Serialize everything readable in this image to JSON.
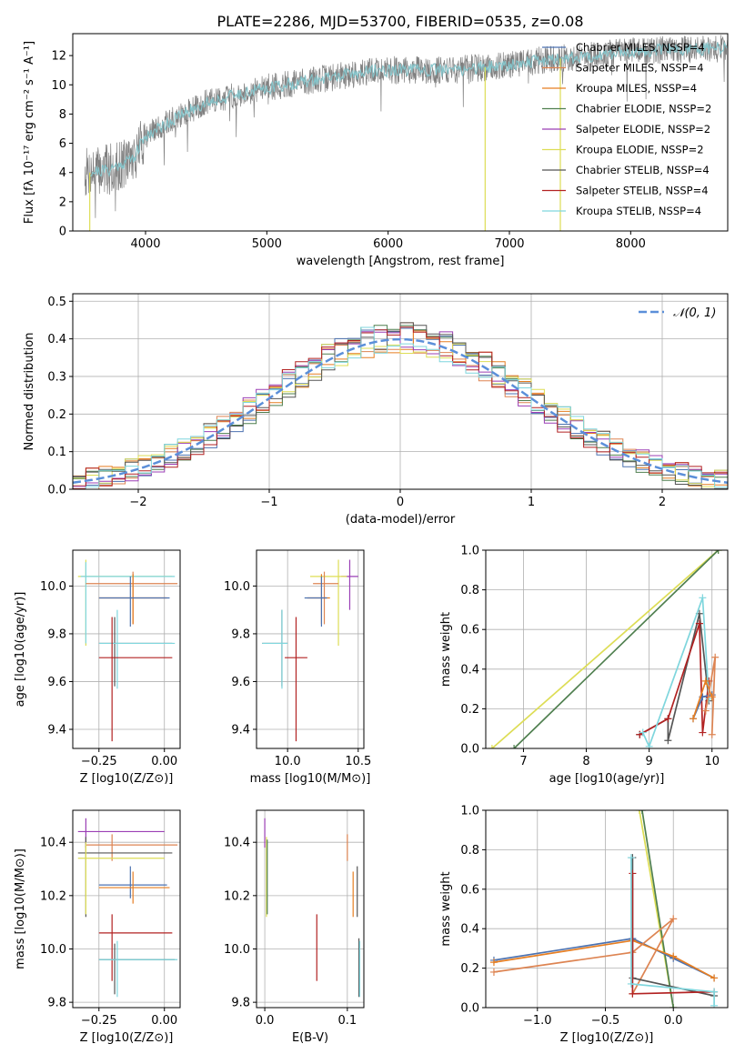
{
  "figure": {
    "title": "PLATE=2286, MJD=53700, FIBERID=0535, z=0.08"
  },
  "colors": {
    "chabrier_miles": "#4c72b0",
    "salpeter_miles": "#dd8452",
    "kroupa_miles": "#e67e22",
    "chabrier_elodie": "#4f7f4f",
    "salpeter_elodie": "#9b3fb5",
    "kroupa_elodie": "#dddd55",
    "chabrier_stelib": "#555555",
    "salpeter_stelib": "#b22222",
    "kroupa_stelib": "#7fd6dd",
    "data": "#808080",
    "gauss": "#5b8fd9"
  },
  "chart_data": [
    {
      "id": "spectrum",
      "type": "line",
      "xlabel": "wavelength [Angstrom, rest frame]",
      "ylabel": "Flux [f_λ 10^-17 erg cm^-2 s^-1 A^-1]",
      "xlim": [
        3400,
        8800
      ],
      "ylim": [
        0,
        13.5
      ],
      "xticks": [
        4000,
        5000,
        6000,
        7000,
        8000
      ],
      "yticks": [
        0,
        2,
        4,
        6,
        8,
        10,
        12
      ],
      "grid": false,
      "legend_position": "right",
      "legend": [
        {
          "label": "Chabrier MILES, N_SSP=4",
          "color_key": "chabrier_miles"
        },
        {
          "label": "Salpeter MILES, N_SSP=4",
          "color_key": "salpeter_miles"
        },
        {
          "label": "Kroupa MILES, N_SSP=4",
          "color_key": "kroupa_miles"
        },
        {
          "label": "Chabrier ELODIE, N_SSP=2",
          "color_key": "chabrier_elodie"
        },
        {
          "label": "Salpeter ELODIE, N_SSP=2",
          "color_key": "salpeter_elodie"
        },
        {
          "label": "Kroupa ELODIE, N_SSP=2",
          "color_key": "kroupa_elodie"
        },
        {
          "label": "Chabrier STELIB, N_SSP=4",
          "color_key": "chabrier_stelib"
        },
        {
          "label": "Salpeter STELIB, N_SSP=4",
          "color_key": "salpeter_stelib"
        },
        {
          "label": "Kroupa STELIB, N_SSP=4",
          "color_key": "kroupa_stelib"
        }
      ],
      "continuum": {
        "x": [
          3500,
          3700,
          3900,
          4000,
          4200,
          4500,
          4800,
          5000,
          5300,
          5600,
          5900,
          6200,
          6500,
          6800,
          7000,
          7200,
          7400,
          7600,
          7800,
          8000,
          8300,
          8800
        ],
        "y": [
          4.0,
          4.2,
          5.0,
          6.5,
          7.5,
          8.8,
          9.4,
          9.8,
          10.2,
          10.6,
          11.0,
          11.0,
          11.0,
          11.2,
          11.4,
          11.6,
          11.8,
          11.9,
          12.1,
          12.3,
          12.4,
          12.5
        ]
      },
      "model_x_range": [
        3540,
        8800
      ],
      "model_edges": [
        {
          "name": "blue edge",
          "x": 3540,
          "ymax": 4.0
        },
        {
          "name": "elodie red edge",
          "x": 6800,
          "ymax": 11.2
        },
        {
          "name": "stelib red edge",
          "x": 7420,
          "ymax": 11.8
        }
      ]
    },
    {
      "id": "residuals",
      "type": "line",
      "xlabel": "(data-model)/error",
      "ylabel": "Normed distribution",
      "xlim": [
        -2.5,
        2.5
      ],
      "ylim": [
        0,
        0.52
      ],
      "xticks": [
        -2,
        -1,
        0,
        1,
        2
      ],
      "yticks": [
        0.0,
        0.1,
        0.2,
        0.3,
        0.4,
        0.5
      ],
      "grid": true,
      "legend_position": "top-right",
      "legend": [
        {
          "label": "𝒩(0, 1)",
          "color_key": "gauss"
        }
      ],
      "bin_width": 0.1,
      "hist_color_keys": [
        "chabrier_miles",
        "salpeter_miles",
        "kroupa_miles",
        "chabrier_elodie",
        "salpeter_elodie",
        "kroupa_elodie",
        "chabrier_stelib",
        "salpeter_stelib",
        "kroupa_stelib"
      ],
      "hist_jitter": [
        0.012,
        -0.018,
        0.02,
        -0.01,
        0.025,
        -0.022,
        0.015,
        -0.014,
        0.018,
        0.008,
        -0.025,
        0.02,
        -0.012,
        0.03,
        -0.016,
        0.01,
        0.022,
        -0.02,
        0.014,
        -0.008,
        0.028,
        -0.018,
        0.012,
        0.016,
        -0.024,
        0.02,
        -0.01,
        0.018,
        0.03,
        -0.015
      ]
    },
    {
      "id": "age_vs_Z",
      "type": "scatter",
      "xlabel": "Z [log10(Z/Z⊙)]",
      "ylabel": "age [log10(age/yr)]",
      "xlim": [
        -0.35,
        0.06
      ],
      "ylim": [
        9.32,
        10.15
      ],
      "xticks": [
        -0.25,
        0.0
      ],
      "xticklabels": [
        "−0.25",
        "0.00"
      ],
      "yticks": [
        9.4,
        9.6,
        9.8,
        10.0
      ],
      "grid": true,
      "crosses": [
        {
          "color_key": "kroupa_elodie",
          "x": -0.3,
          "y": 10.04,
          "x0": -0.33,
          "x1": 0.03,
          "y0": 9.75,
          "y1": 10.11
        },
        {
          "color_key": "kroupa_stelib",
          "x": -0.3,
          "y": 10.04,
          "x0": -0.32,
          "x1": 0.04,
          "y0": 9.76,
          "y1": 10.1
        },
        {
          "color_key": "salpeter_miles",
          "x": -0.12,
          "y": 10.01,
          "x0": -0.3,
          "x1": 0.05,
          "y0": 9.84,
          "y1": 10.06
        },
        {
          "color_key": "kroupa_miles",
          "x": -0.12,
          "y": 9.95,
          "x0": -0.25,
          "x1": 0.01,
          "y0": 9.84,
          "y1": 10.05
        },
        {
          "color_key": "chabrier_miles",
          "x": -0.13,
          "y": 9.95,
          "x0": -0.25,
          "x1": 0.02,
          "y0": 9.83,
          "y1": 10.04
        },
        {
          "color_key": "chabrier_stelib",
          "x": -0.19,
          "y": 9.76,
          "x0": -0.25,
          "x1": 0.03,
          "y0": 9.58,
          "y1": 9.87
        },
        {
          "color_key": "kroupa_stelib",
          "x": -0.18,
          "y": 9.76,
          "x0": -0.25,
          "x1": 0.04,
          "y0": 9.57,
          "y1": 9.9
        },
        {
          "color_key": "salpeter_stelib",
          "x": -0.2,
          "y": 9.7,
          "x0": -0.25,
          "x1": 0.03,
          "y0": 9.35,
          "y1": 9.87
        }
      ]
    },
    {
      "id": "age_vs_mass",
      "type": "scatter",
      "xlabel": "mass [log10(M/M⊙)]",
      "ylabel": "",
      "xlim": [
        9.78,
        10.54
      ],
      "ylim": [
        9.32,
        10.15
      ],
      "xticks": [
        10.0,
        10.5
      ],
      "yticks": [
        9.4,
        9.6,
        9.8,
        10.0
      ],
      "grid": true,
      "crosses": [
        {
          "color_key": "salpeter_elodie",
          "x": 10.44,
          "y": 10.04,
          "x0": 10.38,
          "x1": 10.5,
          "y0": 9.9,
          "y1": 10.11
        },
        {
          "color_key": "kroupa_elodie",
          "x": 10.36,
          "y": 10.04,
          "x0": 10.16,
          "x1": 10.42,
          "y0": 9.75,
          "y1": 10.11
        },
        {
          "color_key": "salpeter_miles",
          "x": 10.26,
          "y": 10.01,
          "x0": 10.18,
          "x1": 10.36,
          "y0": 9.84,
          "y1": 10.06
        },
        {
          "color_key": "kroupa_miles",
          "x": 10.24,
          "y": 9.95,
          "x0": 10.14,
          "x1": 10.3,
          "y0": 9.84,
          "y1": 10.05
        },
        {
          "color_key": "chabrier_miles",
          "x": 10.24,
          "y": 9.95,
          "x0": 10.12,
          "x1": 10.28,
          "y0": 9.83,
          "y1": 10.04
        },
        {
          "color_key": "chabrier_stelib",
          "x": 9.96,
          "y": 9.76,
          "x0": 9.82,
          "x1": 10.0,
          "y0": 9.58,
          "y1": 9.9
        },
        {
          "color_key": "kroupa_stelib",
          "x": 9.96,
          "y": 9.76,
          "x0": 9.82,
          "x1": 10.0,
          "y0": 9.57,
          "y1": 9.9
        },
        {
          "color_key": "salpeter_stelib",
          "x": 10.06,
          "y": 9.7,
          "x0": 9.98,
          "x1": 10.14,
          "y0": 9.35,
          "y1": 9.87
        }
      ]
    },
    {
      "id": "weight_vs_age",
      "type": "line",
      "xlabel": "age [log10(age/yr)]",
      "ylabel": "mass weight",
      "xlim": [
        6.4,
        10.25
      ],
      "ylim": [
        0,
        1.0
      ],
      "xticks": [
        7,
        8,
        9,
        10
      ],
      "yticks": [
        0.0,
        0.2,
        0.4,
        0.6,
        0.8,
        1.0
      ],
      "grid": true,
      "series": [
        {
          "color_key": "kroupa_elodie",
          "x": [
            6.5,
            10.1
          ],
          "y": [
            0.0,
            1.0
          ]
        },
        {
          "color_key": "chabrier_elodie",
          "x": [
            6.85,
            10.1
          ],
          "y": [
            0.0,
            1.0
          ]
        },
        {
          "color_key": "chabrier_stelib",
          "x": [
            8.85,
            9.3,
            9.3,
            9.8,
            9.95
          ],
          "y": [
            0.07,
            0.15,
            0.04,
            0.68,
            0.24
          ]
        },
        {
          "color_key": "salpeter_stelib",
          "x": [
            8.85,
            9.3,
            9.8,
            9.85,
            9.95
          ],
          "y": [
            0.07,
            0.15,
            0.63,
            0.08,
            0.34
          ]
        },
        {
          "color_key": "kroupa_stelib",
          "x": [
            8.9,
            9.0,
            9.85,
            9.95
          ],
          "y": [
            0.08,
            0.01,
            0.76,
            0.25
          ]
        },
        {
          "color_key": "chabrier_miles",
          "x": [
            9.7,
            9.85,
            10.0
          ],
          "y": [
            0.15,
            0.26,
            0.27
          ]
        },
        {
          "color_key": "kroupa_miles",
          "x": [
            9.7,
            9.9,
            10.0
          ],
          "y": [
            0.15,
            0.34,
            0.26
          ]
        },
        {
          "color_key": "salpeter_miles",
          "x": [
            9.9,
            10.05,
            10.0
          ],
          "y": [
            0.19,
            0.46,
            0.07
          ]
        }
      ]
    },
    {
      "id": "mass_vs_Z",
      "type": "scatter",
      "xlabel": "Z [log10(Z/Z⊙)]",
      "ylabel": "mass [log10(M/M⊙)]",
      "xlim": [
        -0.35,
        0.06
      ],
      "ylim": [
        9.78,
        10.52
      ],
      "xticks": [
        -0.25,
        0.0
      ],
      "xticklabels": [
        "−0.25",
        "0.00"
      ],
      "yticks": [
        9.8,
        10.0,
        10.2,
        10.4
      ],
      "grid": true,
      "crosses": [
        {
          "color_key": "salpeter_elodie",
          "x": -0.3,
          "y": 10.44,
          "x0": -0.33,
          "x1": 0.0,
          "y0": 10.38,
          "y1": 10.49
        },
        {
          "color_key": "salpeter_miles",
          "x": -0.2,
          "y": 10.39,
          "x0": -0.3,
          "x1": 0.05,
          "y0": 10.33,
          "y1": 10.43
        },
        {
          "color_key": "chabrier_stelib",
          "x": -0.3,
          "y": 10.36,
          "x0": -0.33,
          "x1": 0.03,
          "y0": 10.12,
          "y1": 10.42
        },
        {
          "color_key": "kroupa_elodie",
          "x": -0.3,
          "y": 10.34,
          "x0": -0.33,
          "x1": 0.0,
          "y0": 10.13,
          "y1": 10.4
        },
        {
          "color_key": "chabrier_miles",
          "x": -0.13,
          "y": 10.24,
          "x0": -0.25,
          "x1": 0.01,
          "y0": 10.19,
          "y1": 10.31
        },
        {
          "color_key": "kroupa_miles",
          "x": -0.12,
          "y": 10.23,
          "x0": -0.25,
          "x1": 0.02,
          "y0": 10.17,
          "y1": 10.29
        },
        {
          "color_key": "salpeter_stelib",
          "x": -0.2,
          "y": 10.06,
          "x0": -0.25,
          "x1": 0.03,
          "y0": 9.88,
          "y1": 10.13
        },
        {
          "color_key": "chabrier_stelib",
          "x": -0.19,
          "y": 9.96,
          "x0": -0.25,
          "x1": 0.04,
          "y0": 9.83,
          "y1": 10.02
        },
        {
          "color_key": "kroupa_stelib",
          "x": -0.18,
          "y": 9.96,
          "x0": -0.25,
          "x1": 0.05,
          "y0": 9.82,
          "y1": 10.03
        }
      ]
    },
    {
      "id": "mass_vs_ebv",
      "type": "scatter",
      "xlabel": "E(B-V)",
      "ylabel": "",
      "xlim": [
        -0.01,
        0.12
      ],
      "ylim": [
        9.78,
        10.52
      ],
      "xticks": [
        0.0,
        0.1
      ],
      "yticks": [
        9.8,
        10.0,
        10.2,
        10.4
      ],
      "grid": true,
      "crosses": [
        {
          "color_key": "salpeter_elodie",
          "x": 0.0,
          "y": 10.44,
          "y0": 10.38,
          "y1": 10.49
        },
        {
          "color_key": "kroupa_elodie",
          "x": 0.002,
          "y": 10.34,
          "y0": 10.12,
          "y1": 10.42
        },
        {
          "color_key": "chabrier_elodie",
          "x": 0.003,
          "y": 10.34,
          "y0": 10.13,
          "y1": 10.41
        },
        {
          "color_key": "salpeter_miles",
          "x": 0.1,
          "y": 10.39,
          "y0": 10.33,
          "y1": 10.43
        },
        {
          "color_key": "kroupa_miles",
          "x": 0.107,
          "y": 10.23,
          "y0": 10.12,
          "y1": 10.29
        },
        {
          "color_key": "chabrier_stelib",
          "x": 0.112,
          "y": 10.24,
          "y0": 10.12,
          "y1": 10.31
        },
        {
          "color_key": "salpeter_stelib",
          "x": 0.063,
          "y": 10.06,
          "y0": 9.88,
          "y1": 10.13
        },
        {
          "color_key": "chabrier_stelib",
          "x": 0.114,
          "y": 9.96,
          "y0": 9.82,
          "y1": 10.04
        },
        {
          "color_key": "kroupa_stelib",
          "x": 0.115,
          "y": 9.96,
          "y0": 9.82,
          "y1": 10.03
        }
      ]
    },
    {
      "id": "weight_vs_Z",
      "type": "line",
      "xlabel": "Z [log10(Z/Z⊙)]",
      "ylabel": "mass weight",
      "xlim": [
        -1.38,
        0.4
      ],
      "ylim": [
        0,
        1.0
      ],
      "xticks": [
        -1.0,
        -0.5,
        0.0
      ],
      "xticklabels": [
        "−1.0",
        "−0.5",
        "0.0"
      ],
      "yticks": [
        0.0,
        0.2,
        0.4,
        0.6,
        0.8,
        1.0
      ],
      "grid": true,
      "series": [
        {
          "color_key": "kroupa_elodie",
          "x": [
            -0.25,
            0.0
          ],
          "y": [
            1.0,
            0.0
          ]
        },
        {
          "color_key": "chabrier_elodie",
          "x": [
            -0.23,
            0.0
          ],
          "y": [
            1.0,
            0.0
          ]
        },
        {
          "color_key": "chabrier_miles",
          "x": [
            -1.32,
            -0.3,
            0.0,
            0.3
          ],
          "y": [
            0.24,
            0.35,
            0.25,
            0.15
          ]
        },
        {
          "color_key": "kroupa_miles",
          "x": [
            -1.32,
            -0.3,
            0.0,
            0.3
          ],
          "y": [
            0.23,
            0.34,
            0.26,
            0.15
          ]
        },
        {
          "color_key": "salpeter_miles",
          "x": [
            -1.32,
            -0.3,
            0.0,
            -0.3
          ],
          "y": [
            0.18,
            0.28,
            0.45,
            0.07
          ]
        },
        {
          "color_key": "chabrier_stelib",
          "x": [
            -0.3,
            -0.3,
            0.3
          ],
          "y": [
            0.76,
            0.15,
            0.06
          ]
        },
        {
          "color_key": "salpeter_stelib",
          "x": [
            -0.3,
            -0.3,
            0.3
          ],
          "y": [
            0.68,
            0.07,
            0.08
          ]
        },
        {
          "color_key": "kroupa_stelib",
          "x": [
            -0.31,
            -0.31,
            0.3,
            0.3
          ],
          "y": [
            0.76,
            0.12,
            0.08,
            0.01
          ]
        }
      ]
    }
  ]
}
